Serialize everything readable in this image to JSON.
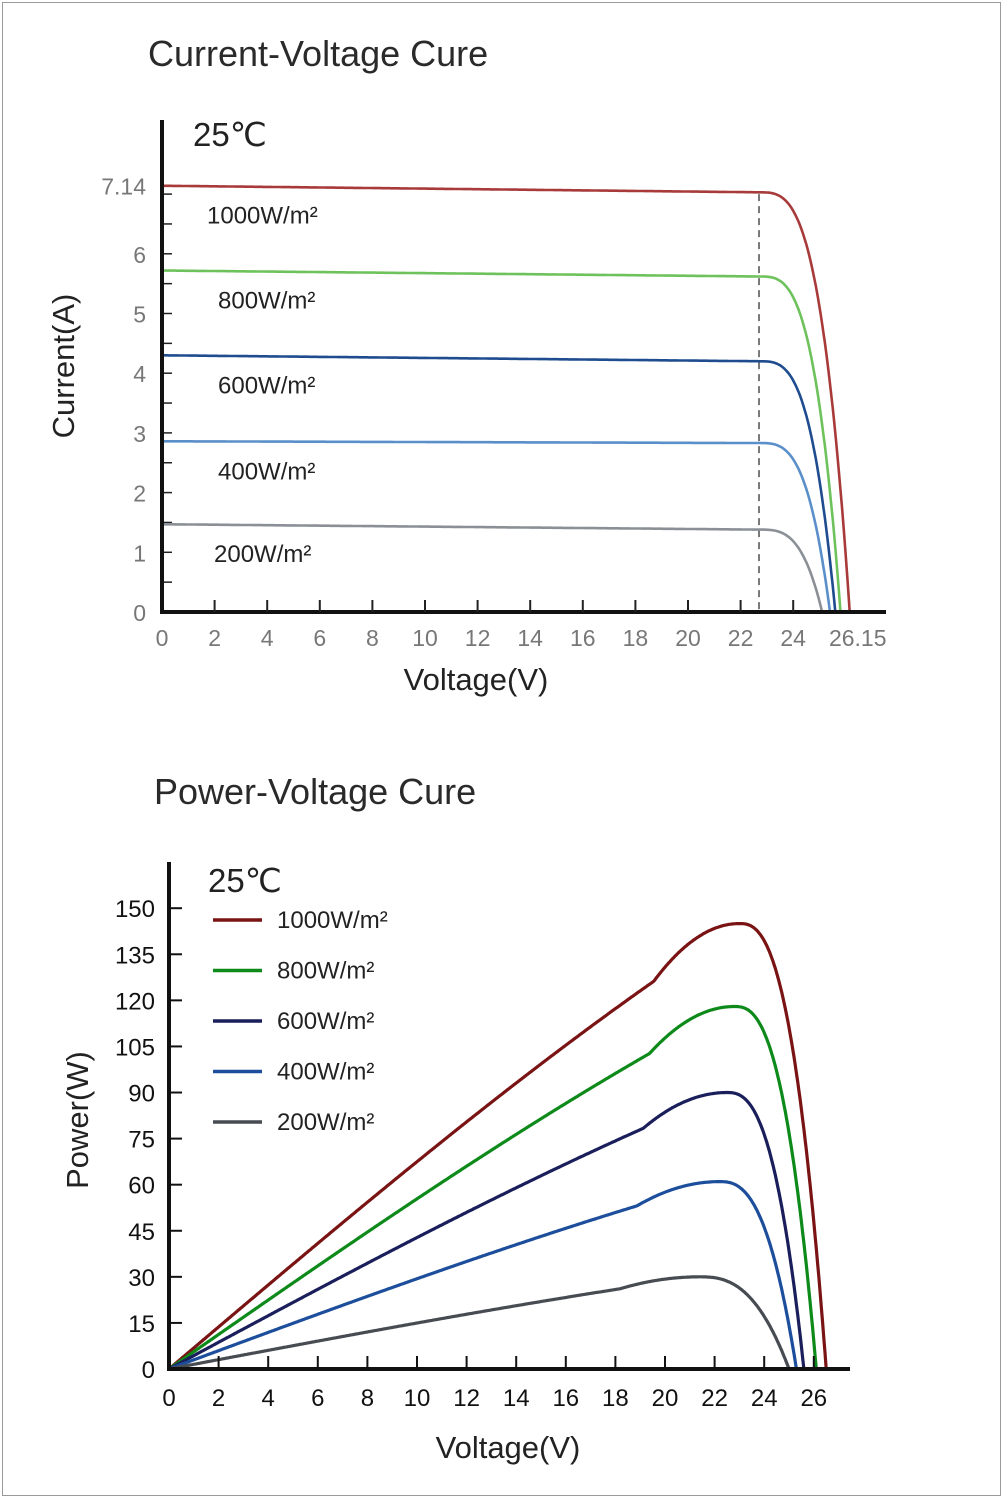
{
  "chart_data": [
    {
      "type": "line",
      "title": "Current-Voltage Cure",
      "subtitle": "25℃",
      "xlabel": "Voltage(V)",
      "ylabel": "Current(A)",
      "xlim": [
        0,
        26.15
      ],
      "ylim": [
        0,
        7.14
      ],
      "x_ticks": [
        "0",
        "2",
        "4",
        "6",
        "8",
        "10",
        "12",
        "14",
        "16",
        "18",
        "20",
        "22",
        "24",
        "26.15"
      ],
      "y_ticks": [
        "0",
        "1",
        "2",
        "3",
        "4",
        "5",
        "6",
        "7.14"
      ],
      "mpp_voltage": 22.7,
      "series": [
        {
          "name": "1000W/m²",
          "color": "#a83a3a",
          "isc": 7.14,
          "imp": 7.03,
          "voc": 26.15
        },
        {
          "name": "800W/m²",
          "color": "#6ec25c",
          "isc": 5.72,
          "imp": 5.62,
          "voc": 25.8
        },
        {
          "name": "600W/m²",
          "color": "#1e4c8f",
          "isc": 4.3,
          "imp": 4.2,
          "voc": 25.6
        },
        {
          "name": "400W/m²",
          "color": "#5b8fc9",
          "isc": 2.86,
          "imp": 2.83,
          "voc": 25.4
        },
        {
          "name": "200W/m²",
          "color": "#8a9096",
          "isc": 1.47,
          "imp": 1.38,
          "voc": 25.1
        }
      ]
    },
    {
      "type": "line",
      "title": "Power-Voltage Cure",
      "subtitle": "25℃",
      "xlabel": "Voltage(V)",
      "ylabel": "Power(W)",
      "xlim": [
        0,
        26.5
      ],
      "ylim": [
        0,
        150
      ],
      "x_ticks": [
        "0",
        "2",
        "4",
        "6",
        "8",
        "10",
        "12",
        "14",
        "16",
        "18",
        "20",
        "22",
        "24",
        "26"
      ],
      "y_ticks": [
        "0",
        "15",
        "30",
        "45",
        "60",
        "75",
        "90",
        "105",
        "120",
        "135",
        "150"
      ],
      "legend": "top-left",
      "series": [
        {
          "name": "1000W/m²",
          "color": "#7a1414",
          "vmp": 23.0,
          "pmax": 145,
          "voc": 26.5
        },
        {
          "name": "800W/m²",
          "color": "#0d8a1a",
          "vmp": 22.8,
          "pmax": 118,
          "voc": 26.1
        },
        {
          "name": "600W/m²",
          "color": "#1a1f5c",
          "vmp": 22.5,
          "pmax": 90,
          "voc": 25.6
        },
        {
          "name": "400W/m²",
          "color": "#1d4e9c",
          "vmp": 22.2,
          "pmax": 61,
          "voc": 25.3
        },
        {
          "name": "200W/m²",
          "color": "#474b52",
          "vmp": 21.4,
          "pmax": 30,
          "voc": 25.0
        }
      ]
    }
  ]
}
